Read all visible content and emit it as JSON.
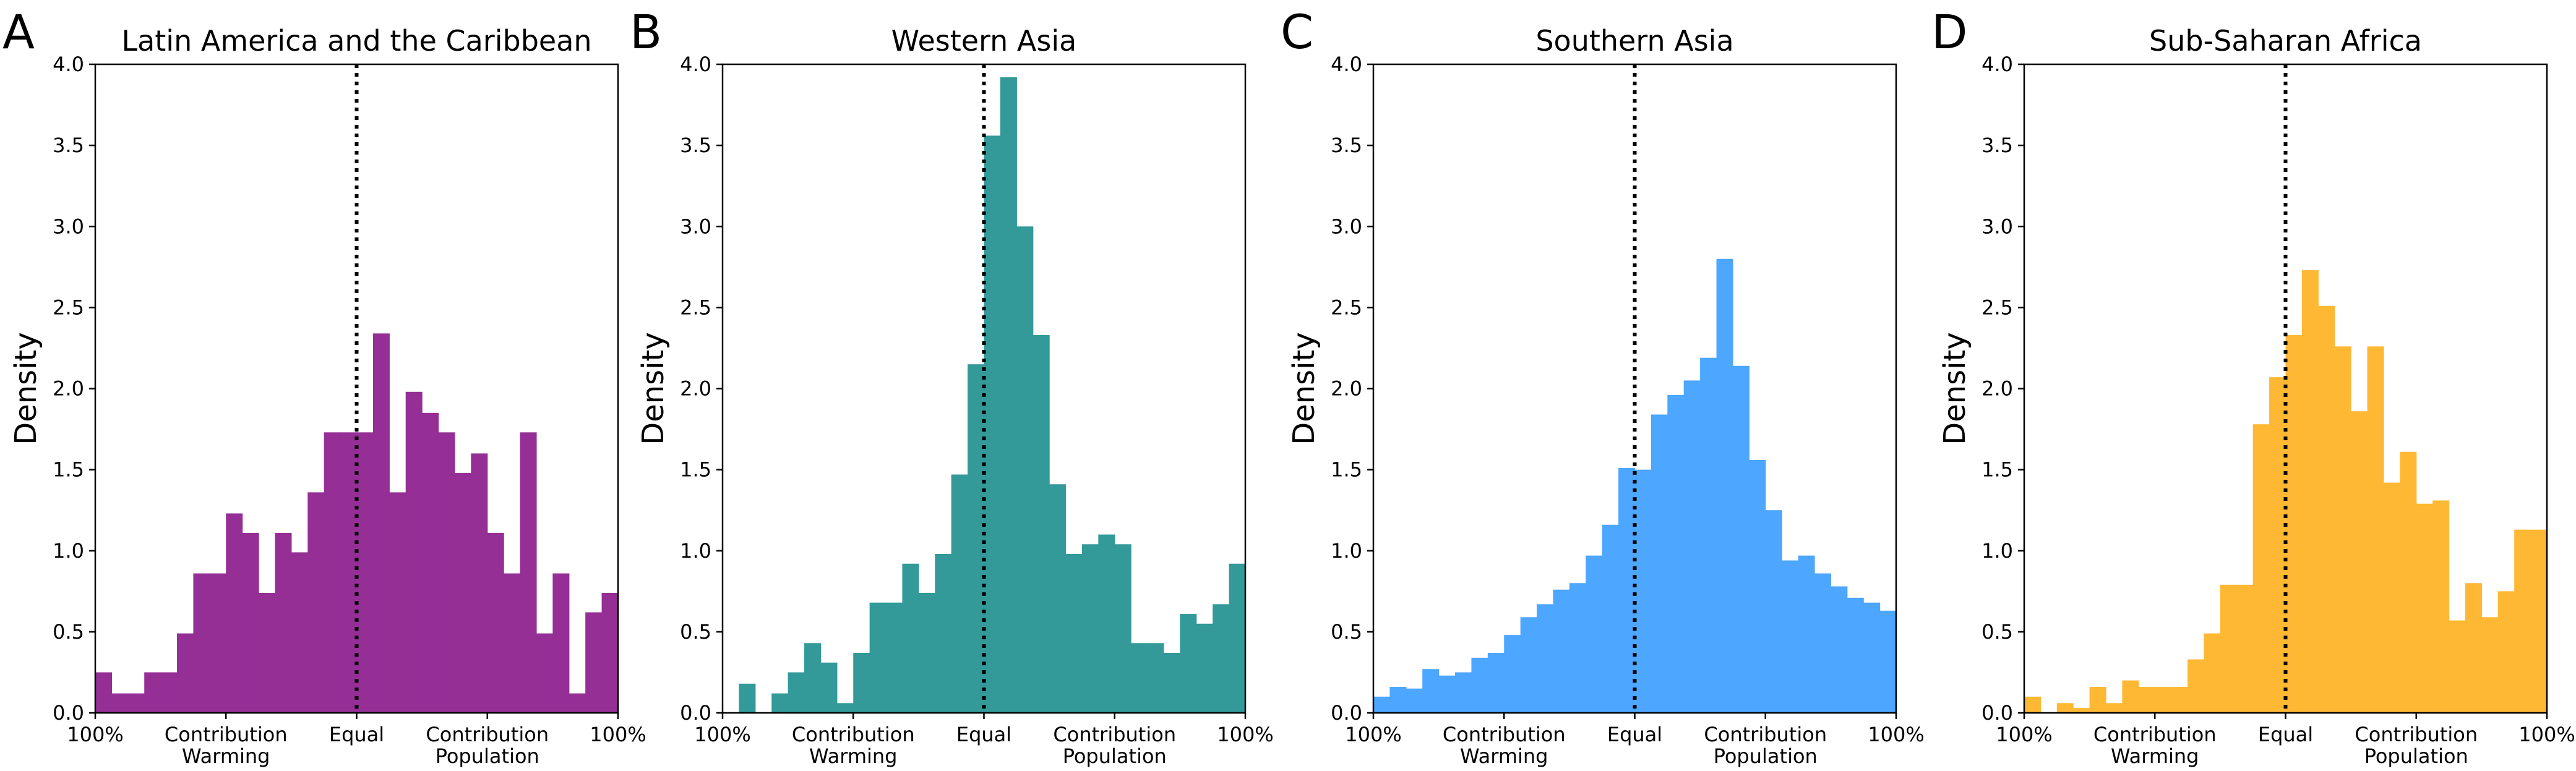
{
  "chart_data": [
    {
      "type": "histogram",
      "panel_label": "A",
      "title": "Latin America and the Caribbean",
      "ylabel": "Density",
      "color": "#952f96",
      "bins": [
        -1,
        -0.9375,
        -0.875,
        -0.8125,
        -0.75,
        -0.6875,
        -0.625,
        -0.5625,
        -0.5,
        -0.4375,
        -0.375,
        -0.3125,
        -0.25,
        -0.1875,
        -0.125,
        -0.0625,
        0,
        0.0625,
        0.125,
        0.1875,
        0.25,
        0.3125,
        0.375,
        0.4375,
        0.5,
        0.5625,
        0.625,
        0.6875,
        0.75,
        0.8125,
        0.875,
        0.9375,
        1
      ],
      "values": [
        0.25,
        0.12,
        0.12,
        0.25,
        0.25,
        0.49,
        0.86,
        0.86,
        1.23,
        1.11,
        0.74,
        1.11,
        0.99,
        1.36,
        1.73,
        1.73,
        1.73,
        2.34,
        1.36,
        1.98,
        1.85,
        1.73,
        1.48,
        1.6,
        1.11,
        0.86,
        1.73,
        0.49,
        0.86,
        0.12,
        0.62,
        0.74
      ],
      "xlim": [
        -1,
        1
      ],
      "ylim": [
        0,
        4
      ],
      "xticks": [
        {
          "value": -1,
          "label": "100%"
        },
        {
          "value": -0.5,
          "label": "Contribution\nWarming"
        },
        {
          "value": 0,
          "label": "Equal"
        },
        {
          "value": 0.5,
          "label": "Contribution\nPopulation"
        },
        {
          "value": 1,
          "label": "100%"
        }
      ],
      "yticks": [
        {
          "value": 0,
          "label": "0.0"
        },
        {
          "value": 0.5,
          "label": "0.5"
        },
        {
          "value": 1,
          "label": "1.0"
        },
        {
          "value": 1.5,
          "label": "1.5"
        },
        {
          "value": 2,
          "label": "2.0"
        },
        {
          "value": 2.5,
          "label": "2.5"
        },
        {
          "value": 3,
          "label": "3.0"
        },
        {
          "value": 3.5,
          "label": "3.5"
        },
        {
          "value": 4,
          "label": "4.0"
        }
      ],
      "vline": 0
    },
    {
      "type": "histogram",
      "panel_label": "B",
      "title": "Western Asia",
      "ylabel": "Density",
      "color": "#339999",
      "bins": [
        -1,
        -0.9375,
        -0.875,
        -0.8125,
        -0.75,
        -0.6875,
        -0.625,
        -0.5625,
        -0.5,
        -0.4375,
        -0.375,
        -0.3125,
        -0.25,
        -0.1875,
        -0.125,
        -0.0625,
        0,
        0.0625,
        0.125,
        0.1875,
        0.25,
        0.3125,
        0.375,
        0.4375,
        0.5,
        0.5625,
        0.625,
        0.6875,
        0.75,
        0.8125,
        0.875,
        0.9375,
        1
      ],
      "values": [
        0,
        0.18,
        0,
        0.12,
        0.25,
        0.43,
        0.31,
        0.06,
        0.37,
        0.68,
        0.68,
        0.92,
        0.74,
        0.98,
        1.47,
        2.15,
        3.56,
        3.92,
        3.0,
        2.33,
        1.41,
        0.98,
        1.04,
        1.1,
        1.04,
        0.43,
        0.43,
        0.37,
        0.61,
        0.55,
        0.67,
        0.92
      ],
      "xlim": [
        -1,
        1
      ],
      "ylim": [
        0,
        4
      ],
      "xticks": [
        {
          "value": -1,
          "label": "100%"
        },
        {
          "value": -0.5,
          "label": "Contribution\nWarming"
        },
        {
          "value": 0,
          "label": "Equal"
        },
        {
          "value": 0.5,
          "label": "Contribution\nPopulation"
        },
        {
          "value": 1,
          "label": "100%"
        }
      ],
      "yticks": [
        {
          "value": 0,
          "label": "0.0"
        },
        {
          "value": 0.5,
          "label": "0.5"
        },
        {
          "value": 1,
          "label": "1.0"
        },
        {
          "value": 1.5,
          "label": "1.5"
        },
        {
          "value": 2,
          "label": "2.0"
        },
        {
          "value": 2.5,
          "label": "2.5"
        },
        {
          "value": 3,
          "label": "3.0"
        },
        {
          "value": 3.5,
          "label": "3.5"
        },
        {
          "value": 4,
          "label": "4.0"
        }
      ],
      "vline": 0
    },
    {
      "type": "histogram",
      "panel_label": "C",
      "title": "Southern Asia",
      "ylabel": "Density",
      "color": "#4da6ff",
      "bins": [
        -1,
        -0.9375,
        -0.875,
        -0.8125,
        -0.75,
        -0.6875,
        -0.625,
        -0.5625,
        -0.5,
        -0.4375,
        -0.375,
        -0.3125,
        -0.25,
        -0.1875,
        -0.125,
        -0.0625,
        0,
        0.0625,
        0.125,
        0.1875,
        0.25,
        0.3125,
        0.375,
        0.4375,
        0.5,
        0.5625,
        0.625,
        0.6875,
        0.75,
        0.8125,
        0.875,
        0.9375,
        1
      ],
      "values": [
        0.1,
        0.16,
        0.15,
        0.27,
        0.23,
        0.25,
        0.34,
        0.37,
        0.48,
        0.59,
        0.67,
        0.76,
        0.8,
        0.97,
        1.16,
        1.51,
        1.5,
        1.84,
        1.96,
        2.05,
        2.19,
        2.8,
        2.14,
        1.56,
        1.25,
        0.94,
        0.97,
        0.86,
        0.78,
        0.71,
        0.68,
        0.63
      ],
      "xlim": [
        -1,
        1
      ],
      "ylim": [
        0,
        4
      ],
      "xticks": [
        {
          "value": -1,
          "label": "100%"
        },
        {
          "value": -0.5,
          "label": "Contribution\nWarming"
        },
        {
          "value": 0,
          "label": "Equal"
        },
        {
          "value": 0.5,
          "label": "Contribution\nPopulation"
        },
        {
          "value": 1,
          "label": "100%"
        }
      ],
      "yticks": [
        {
          "value": 0,
          "label": "0.0"
        },
        {
          "value": 0.5,
          "label": "0.5"
        },
        {
          "value": 1,
          "label": "1.0"
        },
        {
          "value": 1.5,
          "label": "1.5"
        },
        {
          "value": 2,
          "label": "2.0"
        },
        {
          "value": 2.5,
          "label": "2.5"
        },
        {
          "value": 3,
          "label": "3.0"
        },
        {
          "value": 3.5,
          "label": "3.5"
        },
        {
          "value": 4,
          "label": "4.0"
        }
      ],
      "vline": 0
    },
    {
      "type": "histogram",
      "panel_label": "D",
      "title": "Sub-Saharan Africa",
      "ylabel": "Density",
      "color": "#ffb833",
      "bins": [
        -1,
        -0.9375,
        -0.875,
        -0.8125,
        -0.75,
        -0.6875,
        -0.625,
        -0.5625,
        -0.5,
        -0.4375,
        -0.375,
        -0.3125,
        -0.25,
        -0.1875,
        -0.125,
        -0.0625,
        0,
        0.0625,
        0.125,
        0.1875,
        0.25,
        0.3125,
        0.375,
        0.4375,
        0.5,
        0.5625,
        0.625,
        0.6875,
        0.75,
        0.8125,
        0.875,
        0.9375,
        1
      ],
      "values": [
        0.1,
        0,
        0.06,
        0.03,
        0.16,
        0.06,
        0.2,
        0.16,
        0.16,
        0.16,
        0.33,
        0.49,
        0.79,
        0.79,
        1.78,
        2.07,
        2.33,
        2.73,
        2.51,
        2.26,
        1.86,
        2.26,
        1.42,
        1.61,
        1.29,
        1.31,
        0.57,
        0.8,
        0.59,
        0.75,
        1.13,
        1.13
      ],
      "xlim": [
        -1,
        1
      ],
      "ylim": [
        0,
        4
      ],
      "xticks": [
        {
          "value": -1,
          "label": "100%"
        },
        {
          "value": -0.5,
          "label": "Contribution\nWarming"
        },
        {
          "value": 0,
          "label": "Equal"
        },
        {
          "value": 0.5,
          "label": "Contribution\nPopulation"
        },
        {
          "value": 1,
          "label": "100%"
        }
      ],
      "yticks": [
        {
          "value": 0,
          "label": "0.0"
        },
        {
          "value": 0.5,
          "label": "0.5"
        },
        {
          "value": 1,
          "label": "1.0"
        },
        {
          "value": 1.5,
          "label": "1.5"
        },
        {
          "value": 2,
          "label": "2.0"
        },
        {
          "value": 2.5,
          "label": "2.5"
        },
        {
          "value": 3,
          "label": "3.0"
        },
        {
          "value": 3.5,
          "label": "3.5"
        },
        {
          "value": 4,
          "label": "4.0"
        }
      ],
      "vline": 0
    }
  ]
}
